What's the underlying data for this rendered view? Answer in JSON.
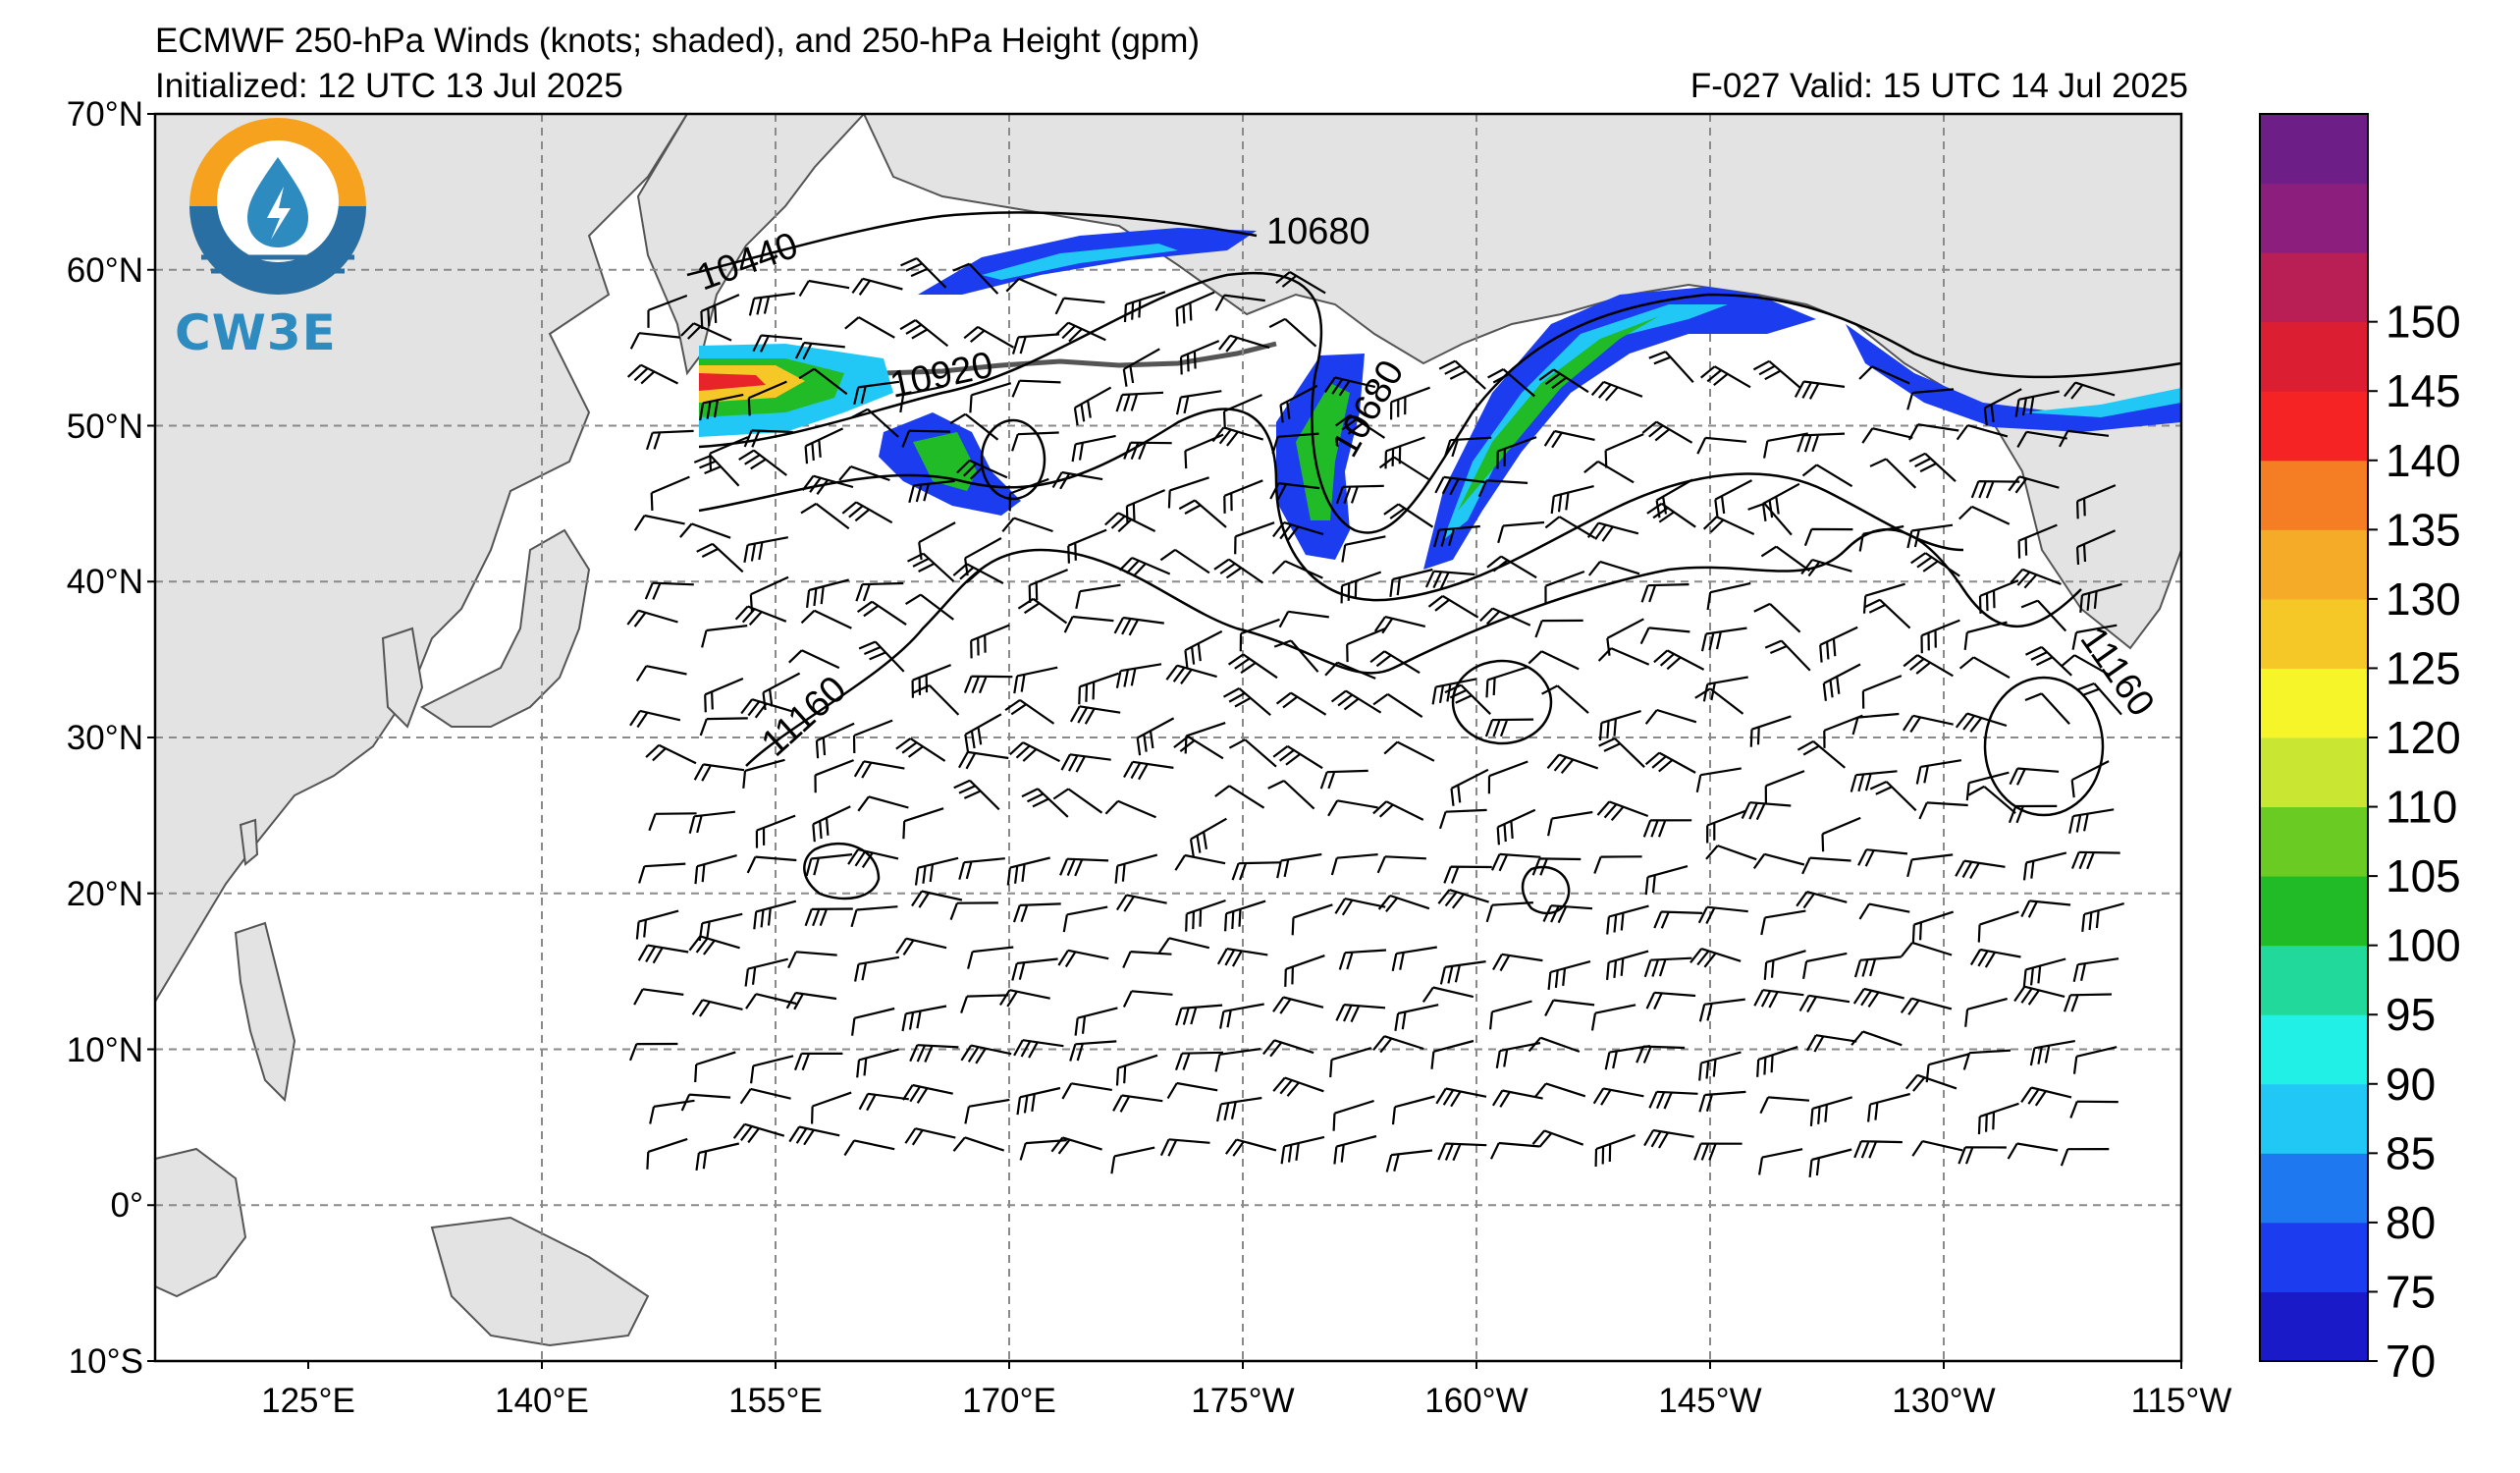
{
  "header": {
    "title": "ECMWF 250-hPa Winds (knots; shaded), and 250-hPa Height (gpm)",
    "initialized": "Initialized: 12 UTC 13 Jul 2025",
    "valid": "F-027  Valid: 15 UTC 14 Jul 2025"
  },
  "logo": {
    "text": "CW3E",
    "icon": "water-drop-sun-logo-icon"
  },
  "map": {
    "lat_labels": [
      "70°N",
      "60°N",
      "50°N",
      "40°N",
      "30°N",
      "20°N",
      "10°N",
      "0°",
      "10°S"
    ],
    "lon_labels": [
      "125°E",
      "140°E",
      "155°E",
      "170°E",
      "175°W",
      "160°W",
      "145°W",
      "130°W",
      "115°W"
    ],
    "contour_labels": [
      "10440",
      "10680",
      "10920",
      "10680",
      "11160",
      "11160"
    ],
    "colors": {
      "land": "#e3e3e3",
      "ocean": "#ffffff",
      "grid": "#8a8a8a",
      "jet_core": "#e8232a"
    }
  },
  "colorbar": {
    "ticks": [
      "150",
      "145",
      "140",
      "135",
      "130",
      "125",
      "120",
      "110",
      "105",
      "100",
      "95",
      "90",
      "85",
      "80",
      "75",
      "70"
    ],
    "colors": [
      "#1a1ac8",
      "#1c3cf0",
      "#1e78f0",
      "#21c8f5",
      "#20f0e6",
      "#22d99c",
      "#22bb28",
      "#6acb22",
      "#c8e632",
      "#f5f52a",
      "#f5c828",
      "#f5aa28",
      "#f57d23",
      "#f52323",
      "#dc1e32",
      "#b91e55",
      "#8c1e7d",
      "#6e1e87"
    ]
  }
}
